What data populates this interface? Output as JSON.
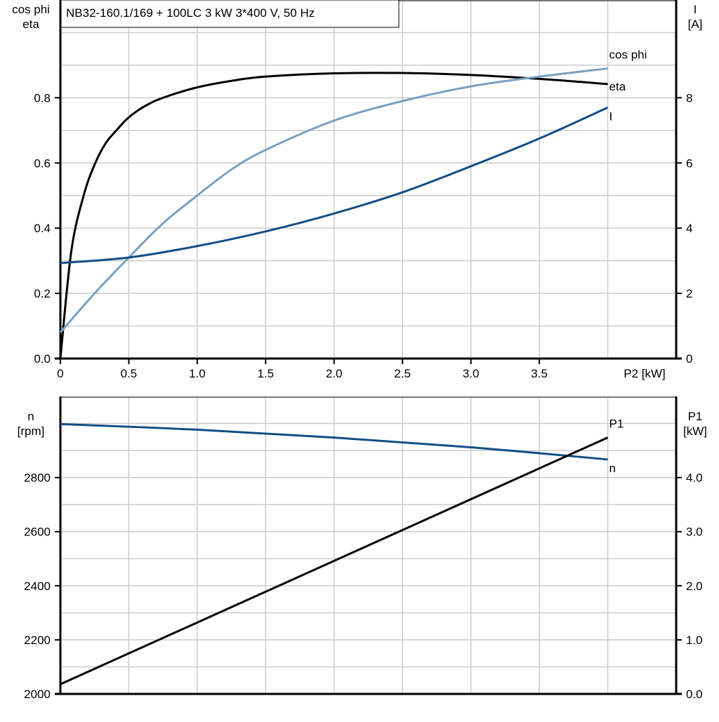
{
  "chart_data": [
    {
      "type": "line",
      "title": "NB32-160.1/169 + 100LC   3 kW   3*400 V, 50 Hz",
      "xlabel": "P2 [kW]",
      "ylabel_left": [
        "cos phi",
        "eta"
      ],
      "ylabel_right": [
        "I",
        "[A]"
      ],
      "xlim": [
        0,
        4.5
      ],
      "ylim_left": [
        0,
        1.1
      ],
      "ylim_right": [
        0,
        11
      ],
      "x_ticks": [
        "0",
        "0.5",
        "1.0",
        "1.5",
        "2.0",
        "2.5",
        "3.0",
        "3.5"
      ],
      "y_ticks_left": [
        "0.0",
        "0.2",
        "0.4",
        "0.6",
        "0.8"
      ],
      "y_ticks_right": [
        "0",
        "2",
        "4",
        "6",
        "8"
      ],
      "grid": true,
      "series": [
        {
          "name": "eta",
          "axis": "left",
          "color": "#000000",
          "x": [
            0,
            0.08,
            0.17,
            0.25,
            0.33,
            0.42,
            0.5,
            0.62,
            0.75,
            1.0,
            1.25,
            1.5,
            2.0,
            2.5,
            3.0,
            3.5,
            4.0
          ],
          "y": [
            0,
            0.33,
            0.5,
            0.595,
            0.66,
            0.705,
            0.74,
            0.775,
            0.8,
            0.832,
            0.852,
            0.865,
            0.875,
            0.876,
            0.87,
            0.858,
            0.842
          ]
        },
        {
          "name": "cos phi",
          "axis": "left",
          "color": "#7aa0c2",
          "x": [
            0,
            0.25,
            0.5,
            0.75,
            1.0,
            1.25,
            1.5,
            2.0,
            2.5,
            3.0,
            3.5,
            4.0
          ],
          "y": [
            0.08,
            0.2,
            0.31,
            0.415,
            0.5,
            0.58,
            0.64,
            0.73,
            0.79,
            0.835,
            0.865,
            0.89
          ]
        },
        {
          "name": "I",
          "axis": "right",
          "color": "#134e85",
          "x": [
            0,
            0.5,
            1.0,
            1.5,
            2.0,
            2.5,
            3.0,
            3.5,
            4.0
          ],
          "y": [
            2.93,
            3.1,
            3.45,
            3.9,
            4.45,
            5.1,
            5.9,
            6.75,
            7.7
          ]
        }
      ]
    },
    {
      "type": "line",
      "xlim": [
        0,
        4.5
      ],
      "ylabel_left": [
        "n",
        "[rpm]"
      ],
      "ylabel_right": [
        "P1",
        "[kW]"
      ],
      "ylim_left": [
        2000,
        3100
      ],
      "ylim_right": [
        0,
        5.5
      ],
      "y_ticks_left": [
        "2000",
        "2200",
        "2400",
        "2600",
        "2800"
      ],
      "y_ticks_right": [
        "0.0",
        "1.0",
        "2.0",
        "3.0",
        "4.0"
      ],
      "grid": true,
      "series": [
        {
          "name": "n",
          "axis": "left",
          "color": "#134e85",
          "x": [
            0,
            1.0,
            2.0,
            3.0,
            4.0
          ],
          "y": [
            2998,
            2977,
            2948,
            2912,
            2867
          ]
        },
        {
          "name": "P1",
          "axis": "right",
          "color": "#000000",
          "x": [
            0,
            4.0
          ],
          "y": [
            0.18,
            4.74
          ]
        }
      ]
    }
  ]
}
